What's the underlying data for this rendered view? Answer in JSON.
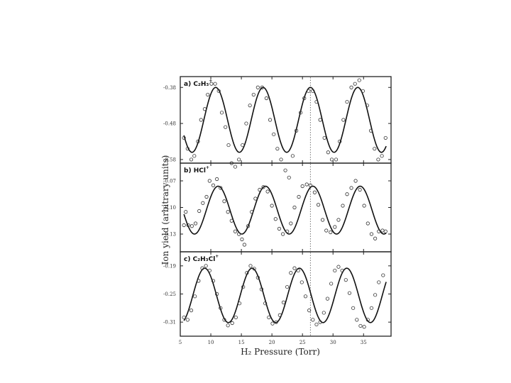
{
  "chart_data": {
    "type": "line",
    "xlabel": "H₂ Pressure (Torr)",
    "ylabel": "Ion yield (arbitrary units)",
    "xlim": [
      5,
      39.5
    ],
    "x_ticks": [
      "5",
      "10",
      "15",
      "20",
      "25",
      "30",
      "35"
    ],
    "reference_line_x": 26.3,
    "panels": [
      {
        "label": "a) C₂H₃",
        "label_superscript": "+",
        "ylim": [
          -0.59,
          -0.35
        ],
        "y_ticks": [
          "-0.38",
          "-0.48",
          "-0.58"
        ],
        "fit": {
          "offset": -0.47,
          "amplitude": 0.09,
          "period": 7.75,
          "peak_x": 10.8
        },
        "points": [
          [
            5.6,
            -0.52
          ],
          [
            6.2,
            -0.55
          ],
          [
            6.8,
            -0.58
          ],
          [
            7.3,
            -0.57
          ],
          [
            7.9,
            -0.53
          ],
          [
            8.4,
            -0.47
          ],
          [
            9.0,
            -0.44
          ],
          [
            9.5,
            -0.4
          ],
          [
            10.1,
            -0.37
          ],
          [
            10.7,
            -0.37
          ],
          [
            11.3,
            -0.39
          ],
          [
            11.8,
            -0.45
          ],
          [
            12.4,
            -0.49
          ],
          [
            12.9,
            -0.54
          ],
          [
            13.4,
            -0.59
          ],
          [
            14.0,
            -0.6
          ],
          [
            14.6,
            -0.58
          ],
          [
            15.2,
            -0.54
          ],
          [
            15.8,
            -0.48
          ],
          [
            16.4,
            -0.43
          ],
          [
            17.0,
            -0.4
          ],
          [
            17.7,
            -0.38
          ],
          [
            18.4,
            -0.38
          ],
          [
            19.1,
            -0.41
          ],
          [
            19.7,
            -0.47
          ],
          [
            20.3,
            -0.51
          ],
          [
            20.9,
            -0.55
          ],
          [
            21.5,
            -0.58
          ],
          [
            22.2,
            -0.61
          ],
          [
            22.8,
            -0.63
          ],
          [
            23.4,
            -0.57
          ],
          [
            24.0,
            -0.5
          ],
          [
            24.7,
            -0.45
          ],
          [
            25.3,
            -0.41
          ],
          [
            26.0,
            -0.39
          ],
          [
            26.7,
            -0.39
          ],
          [
            27.3,
            -0.42
          ],
          [
            27.9,
            -0.47
          ],
          [
            28.6,
            -0.52
          ],
          [
            29.2,
            -0.56
          ],
          [
            29.8,
            -0.58
          ],
          [
            30.5,
            -0.58
          ],
          [
            31.1,
            -0.53
          ],
          [
            31.7,
            -0.47
          ],
          [
            32.3,
            -0.42
          ],
          [
            33.0,
            -0.38
          ],
          [
            33.6,
            -0.37
          ],
          [
            34.3,
            -0.36
          ],
          [
            34.9,
            -0.39
          ],
          [
            35.6,
            -0.43
          ],
          [
            36.2,
            -0.5
          ],
          [
            36.8,
            -0.55
          ],
          [
            37.4,
            -0.58
          ],
          [
            38.0,
            -0.57
          ],
          [
            38.6,
            -0.52
          ]
        ]
      },
      {
        "label": "b) HCl",
        "label_superscript": "+",
        "ylim": [
          -0.15,
          -0.05
        ],
        "y_ticks": [
          "-0.07",
          "-0.10",
          "-0.13"
        ],
        "fit": {
          "offset": -0.103,
          "amplitude": 0.027,
          "period": 7.75,
          "peak_x": 11.2
        },
        "points": [
          [
            5.6,
            -0.12
          ],
          [
            5.9,
            -0.105
          ],
          [
            6.3,
            -0.12
          ],
          [
            6.9,
            -0.121
          ],
          [
            7.5,
            -0.118
          ],
          [
            8.1,
            -0.104
          ],
          [
            8.7,
            -0.095
          ],
          [
            9.3,
            -0.088
          ],
          [
            9.8,
            -0.07
          ],
          [
            10.4,
            -0.075
          ],
          [
            11.0,
            -0.068
          ],
          [
            11.6,
            -0.078
          ],
          [
            12.2,
            -0.093
          ],
          [
            12.8,
            -0.105
          ],
          [
            13.4,
            -0.115
          ],
          [
            14.0,
            -0.127
          ],
          [
            14.6,
            -0.13
          ],
          [
            15.1,
            -0.136
          ],
          [
            15.5,
            -0.142
          ],
          [
            16.1,
            -0.121
          ],
          [
            16.7,
            -0.105
          ],
          [
            17.3,
            -0.09
          ],
          [
            18.0,
            -0.08
          ],
          [
            18.6,
            -0.077
          ],
          [
            19.3,
            -0.082
          ],
          [
            20.0,
            -0.098
          ],
          [
            20.6,
            -0.113
          ],
          [
            21.2,
            -0.124
          ],
          [
            21.8,
            -0.13
          ],
          [
            22.5,
            -0.127
          ],
          [
            23.1,
            -0.118
          ],
          [
            23.7,
            -0.1
          ],
          [
            24.4,
            -0.088
          ],
          [
            25.0,
            -0.076
          ],
          [
            25.7,
            -0.074
          ],
          [
            26.3,
            -0.075
          ],
          [
            27.0,
            -0.083
          ],
          [
            27.6,
            -0.097
          ],
          [
            28.3,
            -0.114
          ],
          [
            28.9,
            -0.126
          ],
          [
            29.6,
            -0.128
          ],
          [
            30.3,
            -0.122
          ],
          [
            30.9,
            -0.114
          ],
          [
            31.6,
            -0.098
          ],
          [
            32.3,
            -0.085
          ],
          [
            33.0,
            -0.078
          ],
          [
            33.7,
            -0.07
          ],
          [
            34.4,
            -0.08
          ],
          [
            35.1,
            -0.098
          ],
          [
            35.7,
            -0.118
          ],
          [
            36.3,
            -0.13
          ],
          [
            36.9,
            -0.135
          ],
          [
            37.5,
            -0.127
          ],
          [
            38.1,
            -0.126
          ],
          [
            38.6,
            -0.127
          ]
        ]
      },
      {
        "label": "c) C₂H₃Cl",
        "label_superscript": "+",
        "ylim": [
          -0.34,
          -0.16
        ],
        "y_ticks": [
          "-0.19",
          "-0.25",
          "-0.31"
        ],
        "fit": {
          "offset": -0.253,
          "amplitude": 0.058,
          "period": 7.75,
          "peak_x": 9.0
        },
        "points": [
          [
            5.6,
            -0.3
          ],
          [
            6.2,
            -0.305
          ],
          [
            6.8,
            -0.285
          ],
          [
            7.4,
            -0.255
          ],
          [
            8.0,
            -0.222
          ],
          [
            8.6,
            -0.195
          ],
          [
            9.2,
            -0.19
          ],
          [
            9.8,
            -0.2
          ],
          [
            10.4,
            -0.222
          ],
          [
            11.0,
            -0.25
          ],
          [
            11.6,
            -0.28
          ],
          [
            12.2,
            -0.305
          ],
          [
            12.8,
            -0.317
          ],
          [
            13.5,
            -0.312
          ],
          [
            14.1,
            -0.3
          ],
          [
            14.7,
            -0.27
          ],
          [
            15.3,
            -0.235
          ],
          [
            15.9,
            -0.205
          ],
          [
            16.5,
            -0.19
          ],
          [
            17.1,
            -0.196
          ],
          [
            17.7,
            -0.215
          ],
          [
            18.3,
            -0.24
          ],
          [
            18.9,
            -0.27
          ],
          [
            19.5,
            -0.3
          ],
          [
            20.1,
            -0.313
          ],
          [
            20.7,
            -0.31
          ],
          [
            21.3,
            -0.295
          ],
          [
            21.9,
            -0.268
          ],
          [
            22.5,
            -0.235
          ],
          [
            23.1,
            -0.205
          ],
          [
            23.7,
            -0.195
          ],
          [
            24.3,
            -0.2
          ],
          [
            24.9,
            -0.225
          ],
          [
            25.5,
            -0.255
          ],
          [
            26.1,
            -0.285
          ],
          [
            26.7,
            -0.305
          ],
          [
            27.3,
            -0.315
          ],
          [
            27.9,
            -0.31
          ],
          [
            28.5,
            -0.29
          ],
          [
            29.1,
            -0.26
          ],
          [
            29.7,
            -0.228
          ],
          [
            30.3,
            -0.2
          ],
          [
            30.9,
            -0.192
          ],
          [
            31.5,
            -0.2
          ],
          [
            32.1,
            -0.22
          ],
          [
            32.7,
            -0.248
          ],
          [
            33.3,
            -0.28
          ],
          [
            33.9,
            -0.305
          ],
          [
            34.5,
            -0.318
          ],
          [
            35.1,
            -0.32
          ],
          [
            35.7,
            -0.305
          ],
          [
            36.3,
            -0.28
          ],
          [
            36.9,
            -0.252
          ],
          [
            37.5,
            -0.225
          ],
          [
            38.2,
            -0.21
          ]
        ]
      }
    ]
  }
}
